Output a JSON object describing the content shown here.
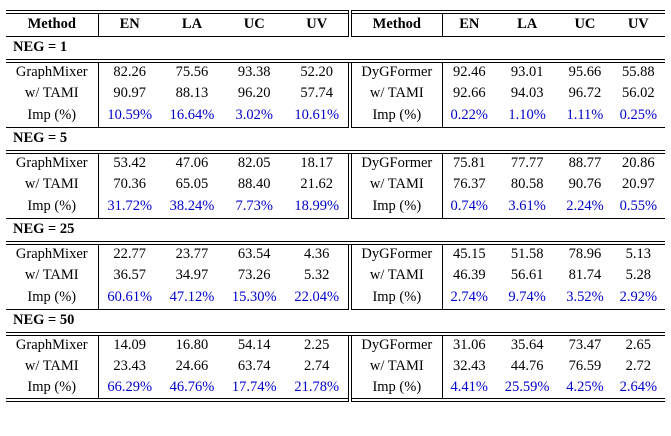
{
  "table": {
    "imp_color": "#0000cc",
    "columns": [
      "Method",
      "EN",
      "LA",
      "UC",
      "UV",
      "Method",
      "EN",
      "LA",
      "UC",
      "UV"
    ],
    "sections": [
      {
        "label": "NEG = 1",
        "rows": [
          {
            "imp": false,
            "left": [
              "GraphMixer",
              "82.26",
              "75.56",
              "93.38",
              "52.20"
            ],
            "right": [
              "DyGFormer",
              "92.46",
              "93.01",
              "95.66",
              "55.88"
            ]
          },
          {
            "imp": false,
            "left": [
              "w/ TAMI",
              "90.97",
              "88.13",
              "96.20",
              "57.74"
            ],
            "right": [
              "w/ TAMI",
              "92.66",
              "94.03",
              "96.72",
              "56.02"
            ]
          },
          {
            "imp": true,
            "left": [
              "Imp (%)",
              "10.59%",
              "16.64%",
              "3.02%",
              "10.61%"
            ],
            "right": [
              "Imp (%)",
              "0.22%",
              "1.10%",
              "1.11%",
              "0.25%"
            ]
          }
        ]
      },
      {
        "label": "NEG = 5",
        "rows": [
          {
            "imp": false,
            "left": [
              "GraphMixer",
              "53.42",
              "47.06",
              "82.05",
              "18.17"
            ],
            "right": [
              "DyGFormer",
              "75.81",
              "77.77",
              "88.77",
              "20.86"
            ]
          },
          {
            "imp": false,
            "left": [
              "w/ TAMI",
              "70.36",
              "65.05",
              "88.40",
              "21.62"
            ],
            "right": [
              "w/ TAMI",
              "76.37",
              "80.58",
              "90.76",
              "20.97"
            ]
          },
          {
            "imp": true,
            "left": [
              "Imp (%)",
              "31.72%",
              "38.24%",
              "7.73%",
              "18.99%"
            ],
            "right": [
              "Imp (%)",
              "0.74%",
              "3.61%",
              "2.24%",
              "0.55%"
            ]
          }
        ]
      },
      {
        "label": "NEG = 25",
        "rows": [
          {
            "imp": false,
            "left": [
              "GraphMixer",
              "22.77",
              "23.77",
              "63.54",
              "4.36"
            ],
            "right": [
              "DyGFormer",
              "45.15",
              "51.58",
              "78.96",
              "5.13"
            ]
          },
          {
            "imp": false,
            "left": [
              "w/ TAMI",
              "36.57",
              "34.97",
              "73.26",
              "5.32"
            ],
            "right": [
              "w/ TAMI",
              "46.39",
              "56.61",
              "81.74",
              "5.28"
            ]
          },
          {
            "imp": true,
            "left": [
              "Imp (%)",
              "60.61%",
              "47.12%",
              "15.30%",
              "22.04%"
            ],
            "right": [
              "Imp (%)",
              "2.74%",
              "9.74%",
              "3.52%",
              "2.92%"
            ]
          }
        ]
      },
      {
        "label": "NEG = 50",
        "rows": [
          {
            "imp": false,
            "left": [
              "GraphMixer",
              "14.09",
              "16.80",
              "54.14",
              "2.25"
            ],
            "right": [
              "DyGFormer",
              "31.06",
              "35.64",
              "73.47",
              "2.65"
            ]
          },
          {
            "imp": false,
            "left": [
              "w/ TAMI",
              "23.43",
              "24.66",
              "63.74",
              "2.74"
            ],
            "right": [
              "w/ TAMI",
              "32.43",
              "44.76",
              "76.59",
              "2.72"
            ]
          },
          {
            "imp": true,
            "left": [
              "Imp (%)",
              "66.29%",
              "46.76%",
              "17.74%",
              "21.78%"
            ],
            "right": [
              "Imp (%)",
              "4.41%",
              "25.59%",
              "4.25%",
              "2.64%"
            ]
          }
        ]
      }
    ]
  }
}
